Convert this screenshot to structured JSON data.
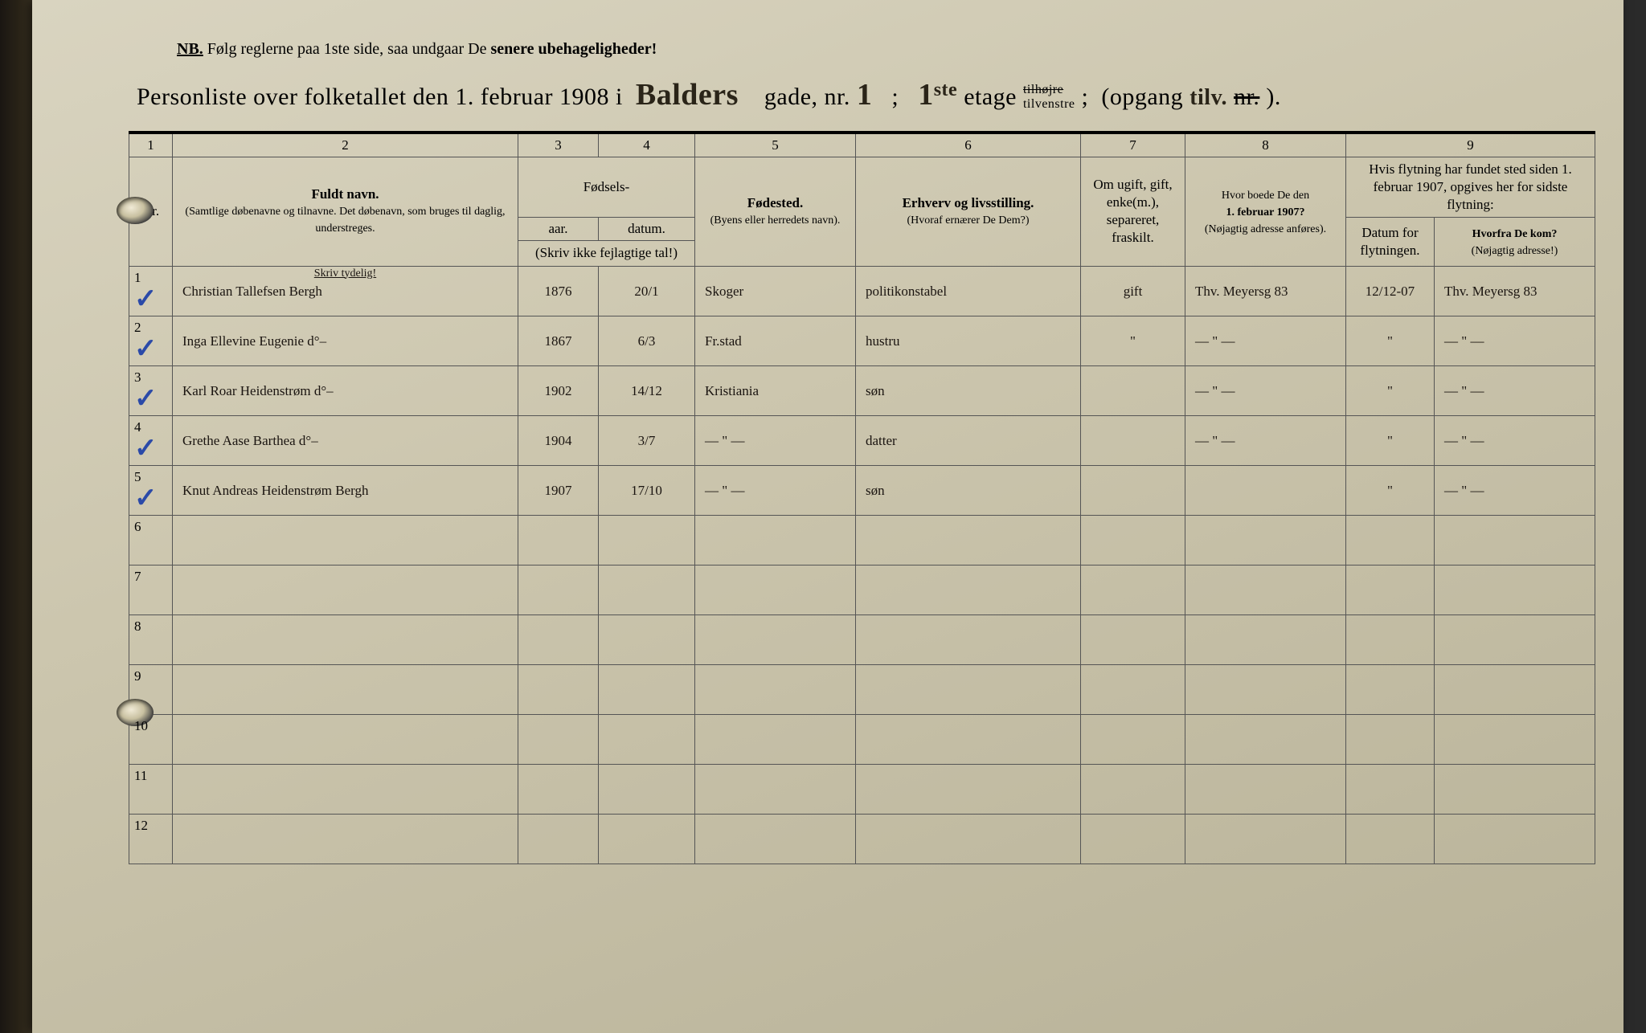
{
  "colors": {
    "paper_light": "#d9d4c0",
    "paper_dark": "#b8b298",
    "ink": "#1a1410",
    "blue_check": "#2b4aa8",
    "rule_line": "#555555"
  },
  "nb": {
    "prefix": "NB.",
    "text": "Følg reglerne paa 1ste side, saa undgaar De ",
    "emph": "senere ubehageligheder!"
  },
  "title": {
    "t1": "Personliste over folketallet den 1. februar 1908 i",
    "street": "Balders",
    "t2": "gade, nr.",
    "nr": "1",
    "semicolon": ";",
    "floor": "1",
    "ste": "ste",
    "etage": "etage",
    "hojre": "tilhøjre",
    "venstre": "tilvenstre",
    "semi2": ";",
    "opgang": "(opgang",
    "opgang_val": "tilv.",
    "nr2": "nr.",
    "close": ")."
  },
  "headers": {
    "colnums": [
      "1",
      "2",
      "3",
      "4",
      "5",
      "6",
      "7",
      "8",
      "9"
    ],
    "nr": "Nr.",
    "name_b": "Fuldt navn.",
    "name_sub": "(Samtlige døbenavne og tilnavne. Det døbenavn, som bruges til daglig, understreges.",
    "fodsels": "Fødsels-",
    "aar": "aar.",
    "datum": "datum.",
    "aar_note": "(Skriv ikke fejlagtige tal!)",
    "place_b": "Fødested.",
    "place_sub": "(Byens eller herredets navn).",
    "occ_b": "Erhverv og livsstilling.",
    "occ_sub": "(Hvoraf ernærer De Dem?)",
    "stat": "Om ugift, gift, enke(m.), separeret, fraskilt.",
    "prev1": "Hvor boede De den",
    "prev2": "1. februar 1907?",
    "prev_sub": "(Nøjagtig adresse anføres).",
    "move": "Hvis flytning har fundet sted siden 1. februar 1907, opgives her for sidste flytning:",
    "mdate": "Datum for flytningen.",
    "mfrom1": "Hvorfra De kom?",
    "mfrom2": "(Nøjagtig adresse!)",
    "skriv": "Skriv tydelig!"
  },
  "rows": [
    {
      "n": "1",
      "chk": "✓",
      "name": "Christian Tallefsen Bergh",
      "year": "1876",
      "date": "20/1",
      "place": "Skoger",
      "occ": "politikonstabel",
      "stat": "gift",
      "prev": "Thv. Meyersg 83",
      "mdate": "12/12-07",
      "mfrom": "Thv. Meyersg 83"
    },
    {
      "n": "2",
      "chk": "✓",
      "name": "Inga Ellevine Eugenie  d°–",
      "year": "1867",
      "date": "6/3",
      "place": "Fr.stad",
      "occ": "hustru",
      "stat": "\"",
      "prev": "— \" —",
      "mdate": "\"",
      "mfrom": "— \" —"
    },
    {
      "n": "3",
      "chk": "✓",
      "name": "Karl Roar Heidenstrøm d°–",
      "year": "1902",
      "date": "14/12",
      "place": "Kristiania",
      "occ": "søn",
      "stat": "",
      "prev": "— \" —",
      "mdate": "\"",
      "mfrom": "— \" —"
    },
    {
      "n": "4",
      "chk": "✓",
      "name": "Grethe Aase Barthea  d°–",
      "year": "1904",
      "date": "3/7",
      "place": "— \" —",
      "occ": "datter",
      "stat": "",
      "prev": "— \" —",
      "mdate": "\"",
      "mfrom": "— \" —"
    },
    {
      "n": "5",
      "chk": "✓",
      "name": "Knut Andreas Heidenstrøm Bergh",
      "year": "1907",
      "date": "17/10",
      "place": "— \" —",
      "occ": "søn",
      "stat": "",
      "prev": "",
      "mdate": "\"",
      "mfrom": "— \" —"
    }
  ],
  "empty_rows": [
    "6",
    "7",
    "8",
    "9",
    "10",
    "11",
    "12"
  ]
}
